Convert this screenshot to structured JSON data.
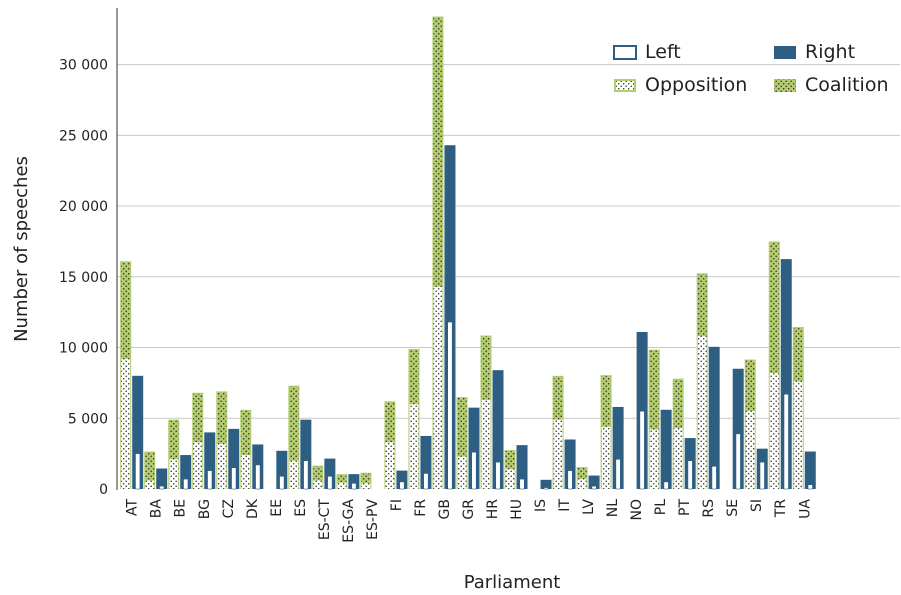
{
  "chart_data": {
    "type": "bar",
    "xlabel": "Parliament",
    "ylabel": "Number of speeches",
    "ylim": [
      0,
      34000
    ],
    "yticks": [
      0,
      5000,
      10000,
      15000,
      20000,
      25000,
      30000
    ],
    "ytick_labels": [
      "0",
      "5 000",
      "10 000",
      "15 000",
      "20 000",
      "25 000",
      "30 000"
    ],
    "grid": "horizontal",
    "legend_position": "top-right",
    "legend": [
      {
        "key": "left",
        "label": "Left"
      },
      {
        "key": "right",
        "label": "Right"
      },
      {
        "key": "opposition",
        "label": "Opposition"
      },
      {
        "key": "coalition",
        "label": "Coalition"
      }
    ],
    "colors": {
      "green": "#b3cc6e",
      "blue": "#2e5e82",
      "outline_blue": "#2e5e82",
      "grid": "#c8c8c8"
    },
    "categories": [
      "AT",
      "BA",
      "BE",
      "BG",
      "CZ",
      "DK",
      "EE",
      "ES",
      "ES-CT",
      "ES-GA",
      "ES-PV",
      "FI",
      "FR",
      "GB",
      "GR",
      "HR",
      "HU",
      "IS",
      "IT",
      "LV",
      "NL",
      "NO",
      "PL",
      "PT",
      "RS",
      "SE",
      "SI",
      "TR",
      "UA"
    ],
    "series": [
      {
        "name": "Opposition",
        "stack": "coalition_bar",
        "values": [
          9200,
          600,
          2100,
          3300,
          3200,
          2400,
          0,
          2000,
          600,
          450,
          400,
          3300,
          6000,
          14300,
          2300,
          6300,
          1400,
          0,
          4900,
          700,
          4400,
          0,
          4200,
          4300,
          10800,
          0,
          5500,
          8200,
          7600
        ]
      },
      {
        "name": "Coalition",
        "stack": "coalition_bar",
        "values": [
          6900,
          2050,
          2800,
          3500,
          3700,
          3200,
          0,
          5300,
          1050,
          600,
          750,
          2900,
          3900,
          19100,
          4200,
          4550,
          1350,
          0,
          3100,
          850,
          3650,
          0,
          5650,
          3500,
          4450,
          0,
          3650,
          9300,
          3850
        ]
      },
      {
        "name": "Left",
        "stack": "left_right_bar",
        "values": [
          2500,
          200,
          700,
          1300,
          1500,
          1700,
          900,
          2000,
          900,
          400,
          0,
          500,
          1100,
          11800,
          2600,
          1900,
          700,
          100,
          1300,
          200,
          2100,
          5500,
          500,
          2000,
          1600,
          3900,
          1900,
          6700,
          300
        ]
      },
      {
        "name": "Right",
        "stack": "left_right_bar",
        "values": [
          5500,
          1250,
          1700,
          2700,
          2750,
          1450,
          1800,
          2900,
          1250,
          650,
          0,
          800,
          2650,
          12500,
          3150,
          6500,
          2400,
          550,
          2200,
          750,
          3700,
          5600,
          5100,
          1600,
          8450,
          4600,
          950,
          9550,
          2350
        ]
      }
    ]
  }
}
